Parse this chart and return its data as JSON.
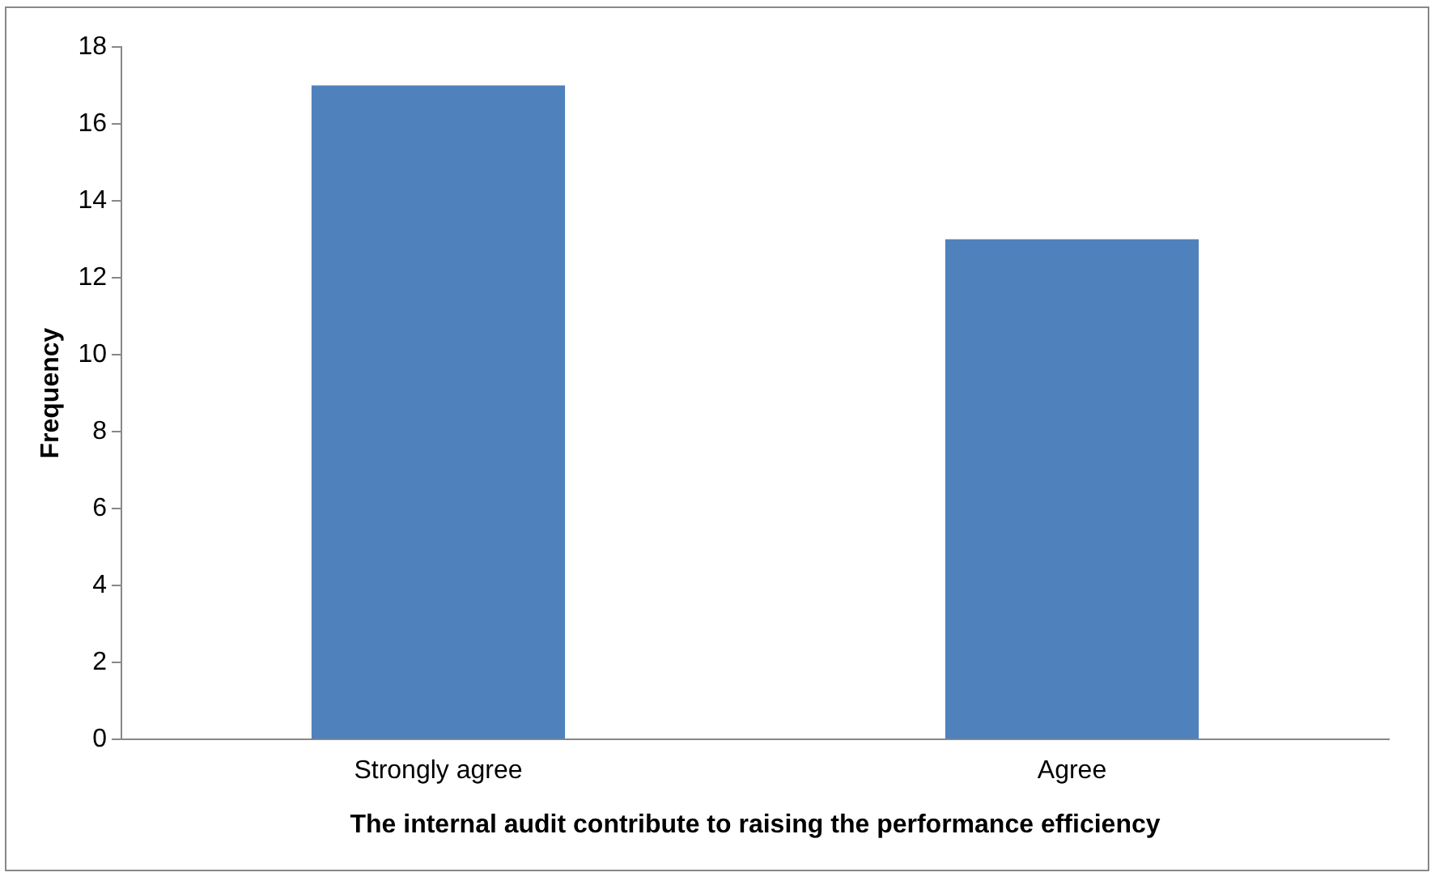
{
  "chart_data": {
    "type": "bar",
    "xlabel": "The internal audit contribute to raising the performance efficiency",
    "ylabel": "Frequency",
    "categories": [
      "Strongly agree",
      "Agree"
    ],
    "values": [
      17,
      13
    ],
    "color": "#4f81bd",
    "ylim": [
      0,
      18
    ],
    "yticks": [
      0,
      2,
      4,
      6,
      8,
      10,
      12,
      14,
      16,
      18
    ],
    "grid": false,
    "legend": false
  }
}
